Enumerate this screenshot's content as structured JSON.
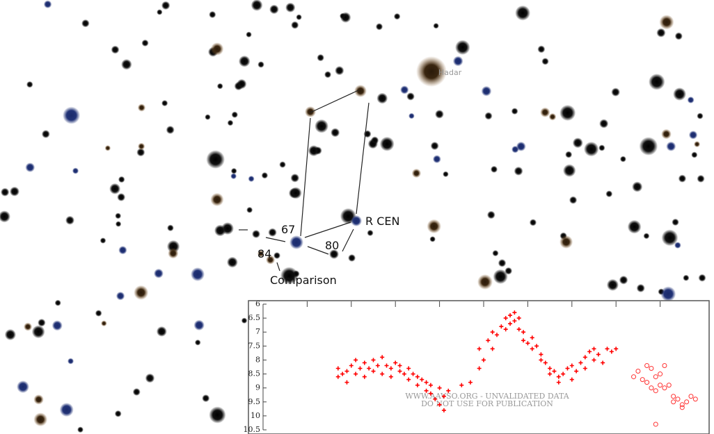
{
  "star_map": {
    "labels": {
      "hadar": "Hadar",
      "r_cen": "R CEN",
      "mag_67": "67",
      "mag_80": "80",
      "mag_84": "84",
      "comparison": "Comparison"
    }
  },
  "chart_data": {
    "type": "scatter",
    "watermark": [
      "WWW.AAVSO.ORG - UNVALIDATED DATA",
      "DO NOT USE FOR PUBLICATION"
    ],
    "xlim": [
      0,
      100
    ],
    "ylim": [
      10.5,
      6
    ],
    "yticks": [
      6,
      6.5,
      7,
      7.5,
      8,
      8.5,
      9,
      9.5,
      10,
      10.5
    ],
    "series": [
      {
        "color": "#ff0000",
        "marker": "plus",
        "x": [
          17,
          17,
          18,
          19,
          19,
          20,
          21,
          21,
          22,
          23,
          23,
          24,
          25,
          25,
          26,
          27,
          27,
          28,
          29,
          29,
          30,
          31,
          31,
          32,
          33,
          33,
          34,
          35,
          35,
          36,
          37,
          37,
          38,
          38,
          39,
          40,
          40,
          41,
          41,
          42,
          45,
          47,
          49,
          49,
          50,
          51,
          52,
          52,
          53,
          54,
          55,
          55,
          56,
          56,
          57,
          57,
          58,
          58,
          59,
          59,
          60,
          61,
          61,
          62,
          63,
          63,
          64,
          65,
          65,
          66,
          67,
          67,
          68,
          69,
          70,
          70,
          71,
          72,
          73,
          73,
          74,
          75,
          75,
          76,
          77,
          78,
          79,
          80
        ],
        "values": [
          8.3,
          8.6,
          8.5,
          8.4,
          8.8,
          8.2,
          8.5,
          8.0,
          8.3,
          8.6,
          8.1,
          8.3,
          8.0,
          8.4,
          8.2,
          8.5,
          7.9,
          8.2,
          8.3,
          8.6,
          8.1,
          8.4,
          8.2,
          8.5,
          8.3,
          8.7,
          8.5,
          8.6,
          8.9,
          8.7,
          8.8,
          9.1,
          9.2,
          8.9,
          9.4,
          9.6,
          9.0,
          9.3,
          9.8,
          9.1,
          8.9,
          8.8,
          8.3,
          7.6,
          8.0,
          7.3,
          7.6,
          7.0,
          7.1,
          6.8,
          6.5,
          6.9,
          6.4,
          6.7,
          6.3,
          6.6,
          6.5,
          6.9,
          7.0,
          7.3,
          7.4,
          7.6,
          7.2,
          7.5,
          7.8,
          8.0,
          8.1,
          8.3,
          8.5,
          8.4,
          8.6,
          8.8,
          8.5,
          8.3,
          8.7,
          8.2,
          8.4,
          8.1,
          7.9,
          8.3,
          7.7,
          8.0,
          7.6,
          7.8,
          8.1,
          7.6,
          7.7,
          7.6
        ]
      },
      {
        "color": "#ff3333",
        "marker": "circle",
        "x": [
          84,
          85,
          86,
          87,
          87,
          88,
          88,
          89,
          89,
          90,
          90,
          91,
          91,
          92,
          93,
          93,
          94,
          95,
          95,
          96,
          97,
          98,
          89
        ],
        "values": [
          8.6,
          8.4,
          8.7,
          8.2,
          8.8,
          8.3,
          9.0,
          8.6,
          9.1,
          8.5,
          8.9,
          8.2,
          9.0,
          8.9,
          9.3,
          9.5,
          9.4,
          9.6,
          9.7,
          9.5,
          9.3,
          9.4,
          10.3
        ]
      }
    ]
  }
}
